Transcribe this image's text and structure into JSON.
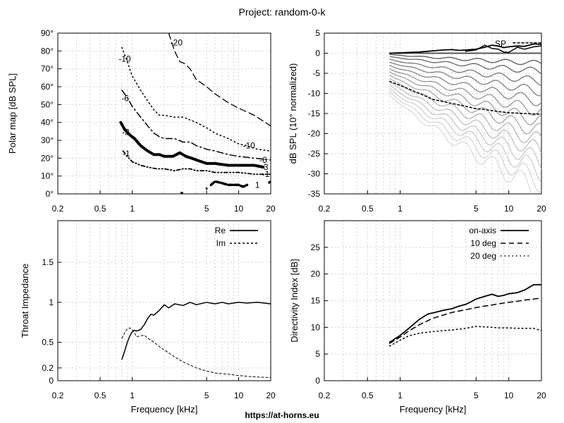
{
  "title": "Project: random-0-k",
  "footer": "https://at-horns.eu",
  "chart_data": [
    {
      "id": "polar",
      "type": "line",
      "ylabel": "Polar map [dB SPL]",
      "xlabel": "",
      "x_scale": "log",
      "xlim": [
        0.2,
        20
      ],
      "ylim": [
        0,
        90
      ],
      "x_ticks": [
        {
          "v": 0.2,
          "l": "0.2"
        },
        {
          "v": 0.5,
          "l": "0.5"
        },
        {
          "v": 1,
          "l": "1"
        },
        {
          "v": 5,
          "l": "5"
        },
        {
          "v": 10,
          "l": "10"
        },
        {
          "v": 20,
          "l": "20"
        }
      ],
      "y_ticks": [
        {
          "v": 0,
          "l": "0°"
        },
        {
          "v": 10,
          "l": "10°"
        },
        {
          "v": 20,
          "l": "20°"
        },
        {
          "v": 30,
          "l": "30°"
        },
        {
          "v": 40,
          "l": "40°"
        },
        {
          "v": 50,
          "l": "50°"
        },
        {
          "v": 60,
          "l": "60°"
        },
        {
          "v": 70,
          "l": "70°"
        },
        {
          "v": 80,
          "l": "80°"
        },
        {
          "v": 90,
          "l": "90°"
        }
      ],
      "grid": true,
      "series": [
        {
          "name": "-20",
          "color": "#000000",
          "width": 1.3,
          "dash": "9 5",
          "label_at": [
            2.6,
            83
          ],
          "x": [
            2.2,
            2.5,
            2.8,
            3.1,
            3.5,
            4,
            5,
            6,
            8,
            10,
            14,
            20
          ],
          "y": [
            90,
            80,
            74,
            73,
            70,
            64,
            60,
            56,
            51,
            48,
            44,
            38
          ]
        },
        {
          "name": "-10",
          "color": "#000000",
          "width": 1.5,
          "dash": "1.5 4",
          "label_at": [
            0.85,
            74
          ],
          "x": [
            0.8,
            0.9,
            1,
            1.2,
            1.4,
            1.6,
            1.8,
            2,
            2.5,
            3,
            4,
            5,
            6,
            8,
            10,
            12,
            15,
            20
          ],
          "y": [
            82,
            74,
            66,
            58,
            52,
            47,
            44,
            44,
            43,
            43,
            40,
            37,
            34,
            31,
            28,
            27,
            25,
            24
          ],
          "right_label": "-10",
          "right_at": [
            12.5,
            27
          ]
        },
        {
          "name": "-6",
          "color": "#000000",
          "width": 1.5,
          "dash": "9 4 2 4",
          "label_at": [
            0.86,
            52
          ],
          "x": [
            0.8,
            0.9,
            1,
            1.2,
            1.4,
            1.6,
            1.8,
            2,
            2.5,
            3,
            3.5,
            4,
            5,
            6,
            8,
            10,
            14,
            20
          ],
          "y": [
            58,
            54,
            49,
            43,
            38,
            34,
            32,
            31,
            31,
            29,
            29,
            27,
            25,
            24,
            22,
            21,
            20,
            19
          ],
          "right_label": "-6",
          "right_at": [
            17,
            19
          ]
        },
        {
          "name": "-3",
          "color": "#000000",
          "width": 4,
          "dash": "",
          "label_at": [
            0.87,
            33
          ],
          "x": [
            0.78,
            0.85,
            0.95,
            1.05,
            1.2,
            1.4,
            1.6,
            1.8,
            2,
            2.4,
            2.8,
            3.2,
            3.6,
            4,
            5,
            6,
            8,
            10,
            12,
            14,
            17
          ],
          "y": [
            40,
            36,
            33,
            31,
            27,
            24,
            22,
            22,
            21,
            21,
            23,
            21,
            20,
            19,
            17,
            17,
            16,
            16,
            16,
            16,
            15
          ],
          "right_label": "-3",
          "right_at": [
            17.5,
            15
          ]
        },
        {
          "name": "-1",
          "color": "#000000",
          "width": 1.8,
          "dash": "5 3 1.5 3 1.5 3",
          "label_at": [
            0.88,
            21
          ],
          "x": [
            0.82,
            0.9,
            1,
            1.2,
            1.4,
            1.7,
            2,
            2.5,
            3,
            3.5,
            4,
            5,
            6,
            8,
            10,
            14,
            20
          ],
          "y": [
            24,
            21,
            18,
            16,
            15,
            14,
            14,
            13,
            14,
            14,
            13,
            13,
            12,
            12,
            12,
            11,
            11
          ],
          "right_label": "-1",
          "right_at": [
            18,
            11
          ]
        },
        {
          "name": "1",
          "color": "#000000",
          "width": 3.5,
          "dash": "6 3",
          "label_at": [
            0,
            0
          ],
          "x": [
            5.5,
            6,
            7,
            8,
            9,
            10,
            11,
            12
          ],
          "y": [
            5,
            7,
            6,
            5,
            5,
            5,
            4,
            5
          ],
          "right_label": "1",
          "right_at": [
            15,
            5
          ]
        }
      ],
      "extra_marks": [
        {
          "color": "#000000",
          "width": 3,
          "x": [
            2.85,
            3.0
          ],
          "y": [
            0.5,
            0.5
          ]
        },
        {
          "color": "#000000",
          "width": 3,
          "x": [
            4.9,
            5.1
          ],
          "y": [
            3,
            3
          ]
        },
        {
          "color": "#000000",
          "width": 3,
          "x": [
            19,
            20
          ],
          "y": [
            6,
            7
          ]
        }
      ]
    },
    {
      "id": "spl",
      "type": "line",
      "ylabel": "dB SPL (10° normalized)",
      "xlabel": "",
      "x_scale": "log",
      "xlim": [
        0.2,
        20
      ],
      "ylim": [
        -35,
        5
      ],
      "x_ticks": [
        {
          "v": 0.2,
          "l": "0.2"
        },
        {
          "v": 0.5,
          "l": "0.5"
        },
        {
          "v": 1,
          "l": "1"
        },
        {
          "v": 5,
          "l": "5"
        },
        {
          "v": 10,
          "l": "10"
        },
        {
          "v": 20,
          "l": "20"
        }
      ],
      "y_ticks": [
        {
          "v": 5,
          "l": "5"
        },
        {
          "v": 0,
          "l": "0"
        },
        {
          "v": -5,
          "l": "-5"
        },
        {
          "v": -10,
          "l": "-10"
        },
        {
          "v": -15,
          "l": "-15"
        },
        {
          "v": -20,
          "l": "-20"
        },
        {
          "v": -25,
          "l": "-25"
        },
        {
          "v": -30,
          "l": "-30"
        },
        {
          "v": -35,
          "l": "-35"
        }
      ],
      "grid": true,
      "legend": [
        {
          "label": "SP",
          "style": "dotted-line"
        }
      ],
      "fan": {
        "x_start": 0.8,
        "x_end": 20,
        "curves": [
          {
            "start": 0,
            "end": 0,
            "color": "#555555",
            "width": 2
          },
          {
            "start": -0.3,
            "end": -2.5,
            "color": "#555555",
            "width": 1.3
          },
          {
            "start": -0.8,
            "end": -4.5,
            "color": "#666666",
            "width": 1.3
          },
          {
            "start": -1.5,
            "end": -7,
            "color": "#6e6e6e",
            "width": 1.2
          },
          {
            "start": -2.2,
            "end": -9.5,
            "color": "#767676",
            "width": 1.2
          },
          {
            "start": -3,
            "end": -12,
            "color": "#7e7e7e",
            "width": 1.2
          },
          {
            "start": -3.8,
            "end": -14.5,
            "color": "#888888",
            "width": 1.1
          },
          {
            "start": -4.6,
            "end": -17,
            "color": "#929292",
            "width": 1.1
          },
          {
            "start": -5.4,
            "end": -19.5,
            "color": "#9c9c9c",
            "width": 1.1
          },
          {
            "start": -6.2,
            "end": -22,
            "color": "#a6a6a6",
            "width": 1.0
          },
          {
            "start": -7,
            "end": -24.5,
            "color": "#b0b0b0",
            "width": 1.0
          },
          {
            "start": -7.8,
            "end": -27,
            "color": "#bababa",
            "width": 1.0
          },
          {
            "start": -8.6,
            "end": -29.5,
            "color": "#c4c4c4",
            "width": 1.0
          },
          {
            "start": -9.4,
            "end": -32,
            "color": "#cccccc",
            "width": 1.0
          },
          {
            "start": -10.2,
            "end": -34.5,
            "color": "#d4d4d4",
            "width": 1.0
          }
        ]
      },
      "series": [
        {
          "name": "on-axis",
          "color": "#000000",
          "width": 1.8,
          "dash": "",
          "x": [
            0.8,
            1,
            1.5,
            2,
            2.5,
            3,
            3.5,
            4,
            5,
            6,
            7,
            8,
            9,
            10,
            12,
            14,
            17,
            20
          ],
          "y": [
            0,
            0.1,
            0.3,
            0.6,
            0.8,
            0.9,
            0.7,
            0.8,
            1,
            1.5,
            2,
            1.8,
            1.4,
            1.6,
            1.8,
            1.7,
            2.3,
            2.2
          ]
        },
        {
          "name": "-10",
          "color": "#000000",
          "width": 1.5,
          "dash": "",
          "x": [
            4,
            5,
            6,
            7,
            8,
            9,
            10,
            12,
            14,
            17,
            20
          ],
          "y": [
            0.5,
            0.8,
            2,
            1.2,
            1,
            0.3,
            0.2,
            1.5,
            1,
            1.6,
            1.8
          ]
        },
        {
          "name": "SP",
          "color": "#000000",
          "width": 1.5,
          "dash": "3 3",
          "x": [
            0.8,
            1,
            1.5,
            2,
            3,
            4,
            5,
            6,
            8,
            10,
            14,
            20
          ],
          "y": [
            -7,
            -8,
            -10,
            -11.5,
            -12.5,
            -13.2,
            -13.8,
            -14,
            -14.5,
            -14.8,
            -15,
            -15.2
          ]
        },
        {
          "name": "SP-legend",
          "color": "#000000",
          "width": 1.5,
          "dash": "3 3",
          "x": [
            11,
            20
          ],
          "y": [
            2.6,
            2.6
          ]
        }
      ]
    },
    {
      "id": "impedance",
      "type": "line",
      "ylabel": "Throat Impedance",
      "xlabel": "Frequency [kHz]",
      "x_scale": "log",
      "xlim": [
        0.2,
        20
      ],
      "ylim": [
        0,
        2
      ],
      "x_ticks": [
        {
          "v": 0.2,
          "l": "0.2"
        },
        {
          "v": 0.5,
          "l": "0.5"
        },
        {
          "v": 1,
          "l": "1"
        },
        {
          "v": 5,
          "l": "5"
        },
        {
          "v": 10,
          "l": "10"
        },
        {
          "v": 20,
          "l": "20"
        }
      ],
      "y_ticks": [
        {
          "v": 0,
          "l": "0"
        },
        {
          "v": 0.2,
          "l": "0.2"
        },
        {
          "v": 0.5,
          "l": "0.5"
        },
        {
          "v": 1,
          "l": "1"
        },
        {
          "v": 1.5,
          "l": "1.5"
        }
      ],
      "grid": true,
      "legend": [
        {
          "label": "Re",
          "style": "solid"
        },
        {
          "label": "Im",
          "style": "dashed"
        }
      ],
      "series": [
        {
          "name": "Re",
          "color": "#000000",
          "width": 1.5,
          "dash": "",
          "x": [
            0.8,
            0.85,
            0.9,
            0.95,
            1,
            1.05,
            1.1,
            1.2,
            1.3,
            1.4,
            1.5,
            1.6,
            1.8,
            2,
            2.2,
            2.5,
            3,
            3.5,
            4,
            5,
            6,
            7,
            8,
            10,
            12,
            15,
            20
          ],
          "y": [
            0.3,
            0.4,
            0.5,
            0.58,
            0.63,
            0.65,
            0.64,
            0.66,
            0.72,
            0.8,
            0.85,
            0.84,
            0.9,
            0.97,
            0.93,
            0.98,
            0.96,
            1,
            0.97,
            1,
            0.98,
            1,
            0.98,
            1,
            0.99,
            1,
            0.98
          ]
        },
        {
          "name": "Im",
          "color": "#000000",
          "width": 1,
          "dash": "3 3",
          "x": [
            0.8,
            0.85,
            0.9,
            0.95,
            1,
            1.05,
            1.1,
            1.2,
            1.3,
            1.4,
            1.6,
            1.8,
            2,
            2.5,
            3,
            4,
            5,
            6,
            8,
            10,
            14,
            20
          ],
          "y": [
            0.55,
            0.62,
            0.67,
            0.68,
            0.66,
            0.62,
            0.57,
            0.58,
            0.59,
            0.55,
            0.5,
            0.45,
            0.41,
            0.33,
            0.27,
            0.2,
            0.15,
            0.12,
            0.1,
            0.08,
            0.06,
            0.05
          ]
        }
      ]
    },
    {
      "id": "di",
      "type": "line",
      "ylabel": "Directivity Index [dB]",
      "xlabel": "Frequency [kHz]",
      "x_scale": "log",
      "xlim": [
        0.2,
        20
      ],
      "ylim": [
        0,
        30
      ],
      "x_ticks": [
        {
          "v": 0.2,
          "l": "0.2"
        },
        {
          "v": 0.5,
          "l": "0.5"
        },
        {
          "v": 1,
          "l": "1"
        },
        {
          "v": 5,
          "l": "5"
        },
        {
          "v": 10,
          "l": "10"
        },
        {
          "v": 20,
          "l": "20"
        }
      ],
      "y_ticks": [
        {
          "v": 0,
          "l": "0"
        },
        {
          "v": 5,
          "l": "5"
        },
        {
          "v": 10,
          "l": "10"
        },
        {
          "v": 15,
          "l": "15"
        },
        {
          "v": 20,
          "l": "20"
        },
        {
          "v": 25,
          "l": "25"
        }
      ],
      "grid": true,
      "legend": [
        {
          "label": "on-axis",
          "style": "solid"
        },
        {
          "label": "10 deg",
          "style": "dashed"
        },
        {
          "label": "20 deg",
          "style": "dotted"
        }
      ],
      "series": [
        {
          "name": "on-axis",
          "color": "#000000",
          "width": 1.8,
          "dash": "",
          "x": [
            0.8,
            1,
            1.2,
            1.5,
            1.8,
            2,
            2.5,
            3,
            3.5,
            4,
            4.5,
            5,
            6,
            7,
            8,
            9,
            10,
            12,
            14,
            17,
            20
          ],
          "y": [
            7.2,
            8.5,
            9.8,
            11.5,
            12.5,
            12.7,
            13.2,
            13.5,
            14,
            14.3,
            14.8,
            15.3,
            15.8,
            16.2,
            15.8,
            16,
            16.3,
            16.5,
            17,
            18,
            18
          ]
        },
        {
          "name": "10 deg",
          "color": "#000000",
          "width": 1.5,
          "dash": "7 5",
          "x": [
            0.8,
            1,
            1.2,
            1.5,
            2,
            2.5,
            3,
            4,
            5,
            6,
            7,
            8,
            10,
            12,
            14,
            17,
            20
          ],
          "y": [
            7,
            8.2,
            9.3,
            10.5,
            11.7,
            12.3,
            12.8,
            13.3,
            13.7,
            14,
            14.2,
            14.4,
            14.7,
            14.9,
            15.1,
            15.3,
            15.5
          ]
        },
        {
          "name": "20 deg",
          "color": "#000000",
          "width": 1.5,
          "dash": "1.5 4",
          "x": [
            0.8,
            1,
            1.2,
            1.5,
            2,
            2.5,
            3,
            4,
            5,
            6,
            7,
            8,
            10,
            12,
            14,
            17,
            20
          ],
          "y": [
            6.5,
            7.6,
            8.4,
            8.9,
            9.2,
            9.4,
            9.5,
            9.8,
            10.2,
            10.1,
            10,
            9.9,
            9.9,
            9.8,
            9.8,
            9.8,
            9.4
          ]
        }
      ]
    }
  ]
}
